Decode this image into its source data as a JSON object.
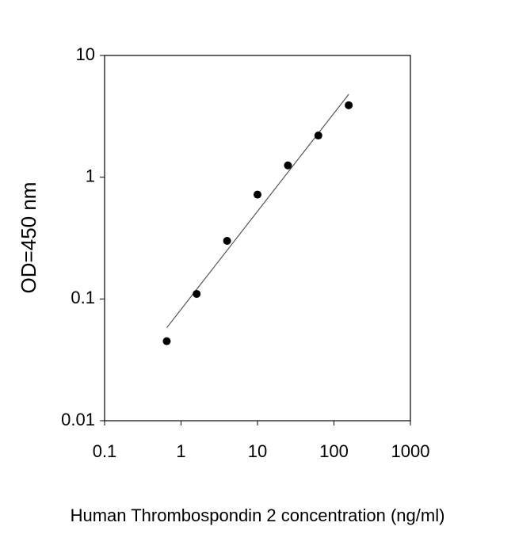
{
  "chart_data": {
    "type": "scatter",
    "xlabel": "Human Thrombospondin 2 concentration (ng/ml)",
    "ylabel": "OD=450 nm",
    "xscale": "log",
    "yscale": "log",
    "xlim": [
      0.1,
      1000
    ],
    "xticks": [
      0.1,
      1,
      10,
      100,
      1000
    ],
    "ylim": [
      0.01,
      10
    ],
    "yticks": [
      0.01,
      0.1,
      1,
      10
    ],
    "series": [
      {
        "x": [
          0.65,
          1.6,
          4,
          10,
          25,
          62.5,
          156
        ],
        "values": [
          0.045,
          0.11,
          0.3,
          0.72,
          1.25,
          2.2,
          3.9
        ],
        "color": "#000000"
      }
    ],
    "fit": {
      "x": [
        0.65,
        156
      ],
      "values": [
        0.058,
        4.8
      ],
      "color": "#555555"
    }
  }
}
